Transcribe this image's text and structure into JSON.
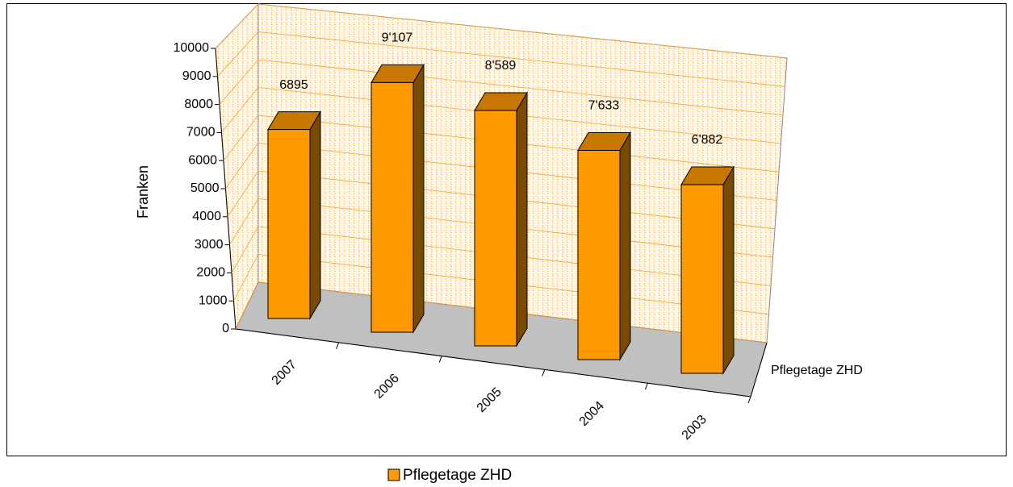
{
  "chart_data": {
    "type": "bar3d",
    "categories": [
      "2007",
      "2006",
      "2005",
      "2004",
      "2003"
    ],
    "series": [
      {
        "name": "Pflegetage ZHD",
        "color": "#ff9900",
        "values": [
          6895,
          9107,
          8589,
          7633,
          6882
        ],
        "value_labels": [
          "6895",
          "9'107",
          "8'589",
          "7'633",
          "6'882"
        ]
      }
    ],
    "y_label": "Franken",
    "depth_label": "Pflegetage ZHD",
    "ylim": [
      0,
      10000
    ],
    "yticks": [
      0,
      1000,
      2000,
      3000,
      4000,
      5000,
      6000,
      7000,
      8000,
      9000,
      10000
    ],
    "grid": true
  }
}
